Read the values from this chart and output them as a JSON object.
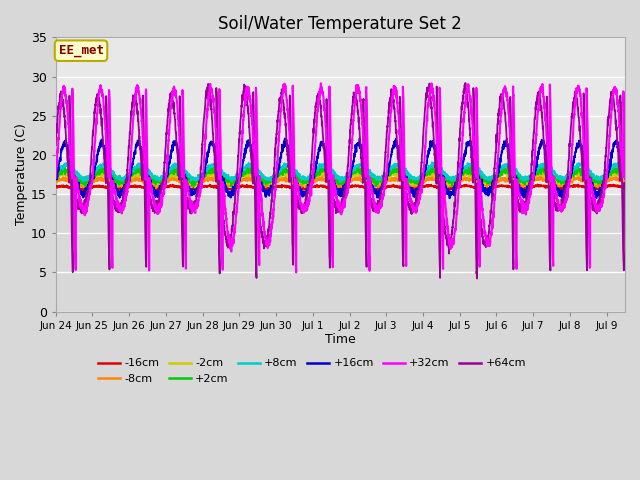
{
  "title": "Soil/Water Temperature Set 2",
  "xlabel": "Time",
  "ylabel": "Temperature (C)",
  "ylim": [
    0,
    35
  ],
  "annotation_text": "EE_met",
  "annotation_bg": "#ffffcc",
  "annotation_border": "#bbaa00",
  "annotation_text_color": "#880000",
  "fig_bg": "#d8d8d8",
  "plot_bg": "#efefef",
  "plot_band_bg": "#e0e0e0",
  "grid_color": "#cccccc",
  "xtick_labels": [
    "Jun 24",
    "Jun 25",
    "Jun 26",
    "Jun 27",
    "Jun 28",
    "Jun 29",
    "Jun 30",
    "Jul 1",
    "Jul 2",
    "Jul 3",
    "Jul 4",
    "Jul 5",
    "Jul 6",
    "Jul 7",
    "Jul 8",
    "Jul 9"
  ],
  "ytick_values": [
    0,
    5,
    10,
    15,
    20,
    25,
    30,
    35
  ],
  "legend": [
    {
      "label": "-16cm",
      "color": "#dd0000"
    },
    {
      "label": "-8cm",
      "color": "#ff8800"
    },
    {
      "label": "-2cm",
      "color": "#cccc00"
    },
    {
      "label": "+2cm",
      "color": "#00cc00"
    },
    {
      "label": "+8cm",
      "color": "#00cccc"
    },
    {
      "label": "+16cm",
      "color": "#0000cc"
    },
    {
      "label": "+32cm",
      "color": "#ff00ff"
    },
    {
      "label": "+64cm",
      "color": "#990099"
    }
  ]
}
